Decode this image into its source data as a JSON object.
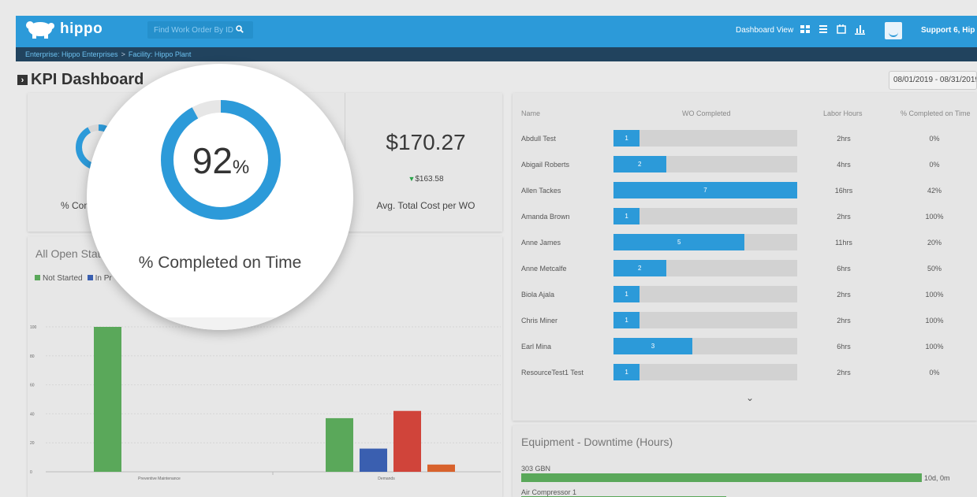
{
  "header": {
    "app_name": "hippo",
    "search_placeholder": "Find Work Order By ID",
    "view_label": "Dashboard View",
    "user_name": "Support 6, Hip"
  },
  "breadcrumb": {
    "enterprise": "Enterprise: Hippo Enterprises",
    "separator": ">",
    "facility": "Facility: Hippo Plant"
  },
  "page": {
    "title": "KPI Dashboard",
    "date_range": "08/01/2019 - 08/31/2019"
  },
  "kpis": {
    "completed_on_time": {
      "value": "92",
      "unit": "%",
      "percent": 92,
      "label": "% Completed on Time",
      "small_label": "% Com"
    },
    "avg_cost": {
      "value": "$170.27",
      "delta": "$163.58",
      "label": "Avg. Total Cost per WO"
    }
  },
  "open_status": {
    "title": "All Open Statu",
    "legend": [
      {
        "label": "Not Started",
        "color": "#5aa85a"
      },
      {
        "label": "In Pr",
        "color": "#3a5fb0"
      }
    ]
  },
  "chart_data": {
    "type": "bar",
    "categories": [
      "Preventive Maintenance",
      "Demands"
    ],
    "ylim": [
      0,
      100
    ],
    "yticks": [
      0,
      20,
      40,
      60,
      80,
      100
    ],
    "series": [
      {
        "color": "#5aa85a",
        "values": [
          100,
          37
        ]
      },
      {
        "color": "#3a5fb0",
        "values": [
          0,
          16
        ]
      },
      {
        "color": "#d0443a",
        "values": [
          0,
          42
        ]
      },
      {
        "color": "#d8622c",
        "values": [
          0,
          5
        ]
      }
    ]
  },
  "wo_table": {
    "headers": {
      "name": "Name",
      "completed": "WO Completed",
      "hours": "Labor Hours",
      "pct": "% Completed on Time"
    },
    "max_completed": 7,
    "rows": [
      {
        "name": "Abdull Test",
        "completed": "1",
        "hours": "2hrs",
        "pct": "0%"
      },
      {
        "name": "Abigail Roberts",
        "completed": "2",
        "hours": "4hrs",
        "pct": "0%"
      },
      {
        "name": "Allen Tackes",
        "completed": "7",
        "hours": "16hrs",
        "pct": "42%"
      },
      {
        "name": "Amanda Brown",
        "completed": "1",
        "hours": "2hrs",
        "pct": "100%"
      },
      {
        "name": "Anne James",
        "completed": "5",
        "hours": "11hrs",
        "pct": "20%"
      },
      {
        "name": "Anne Metcalfe",
        "completed": "2",
        "hours": "6hrs",
        "pct": "50%"
      },
      {
        "name": "Biola Ajala",
        "completed": "1",
        "hours": "2hrs",
        "pct": "100%"
      },
      {
        "name": "Chris Miner",
        "completed": "1",
        "hours": "2hrs",
        "pct": "100%"
      },
      {
        "name": "Earl Mina",
        "completed": "3",
        "hours": "6hrs",
        "pct": "100%"
      },
      {
        "name": "ResourceTest1 Test",
        "completed": "1",
        "hours": "2hrs",
        "pct": "0%"
      }
    ]
  },
  "equipment": {
    "title": "Equipment - Downtime (Hours)",
    "items": [
      {
        "name": "303 GBN",
        "value": "10d, 0m",
        "fraction": 1.0
      },
      {
        "name": "Air Compressor 1",
        "value": "",
        "fraction": 0.5
      }
    ]
  },
  "colors": {
    "brand": "#2c9ad9",
    "breadcrumb_bg": "#21435e"
  }
}
